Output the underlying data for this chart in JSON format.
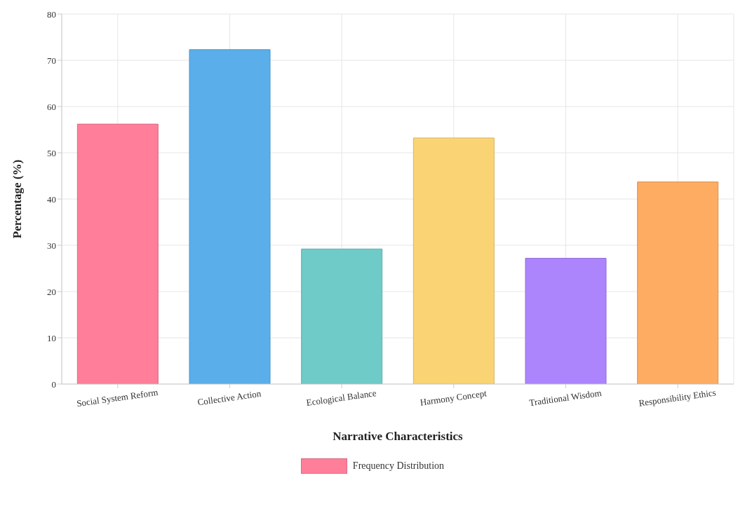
{
  "chart_data": {
    "type": "bar",
    "xlabel": "Narrative Characteristics",
    "ylabel": "Percentage (%)",
    "categories": [
      "Social System Reform",
      "Collective Action",
      "Ecological Balance",
      "Harmony Concept",
      "Traditional Wisdom",
      "Responsibility Ethics"
    ],
    "series": [
      {
        "name": "Frequency Distribution",
        "color": "#ff7e99",
        "colors": [
          "#ff7e99",
          "#5aafea",
          "#6ecbc8",
          "#fad474",
          "#ac84fc",
          "#fdac62"
        ],
        "values": [
          56.2,
          72.3,
          29.2,
          53.2,
          27.2,
          43.7
        ]
      }
    ],
    "ylim": [
      0,
      80
    ],
    "yticks": [
      0,
      10,
      20,
      30,
      40,
      50,
      60,
      70,
      80
    ],
    "grid": true,
    "legend": "bottom"
  }
}
